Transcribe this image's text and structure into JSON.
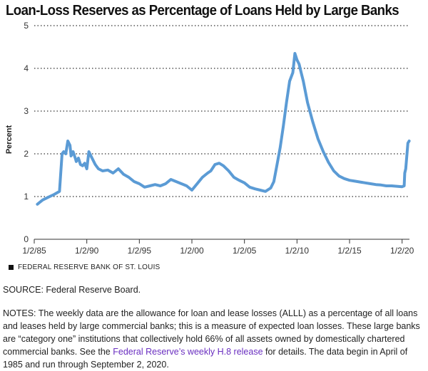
{
  "header": {
    "title": "Loan-Loss Reserves as Percentage of Loans Held by Large Banks"
  },
  "chart_data": {
    "type": "line",
    "title": "Loan-Loss Reserves as Percentage of Loans Held by Large Banks",
    "ylabel": "Percent",
    "xlabel": "",
    "ylim": [
      0,
      5
    ],
    "yticks": [
      0,
      1,
      2,
      3,
      4,
      5
    ],
    "xlim": [
      1985.0,
      2020.7
    ],
    "xticks": [
      {
        "value": 1985,
        "label": "1/2/85"
      },
      {
        "value": 1990,
        "label": "1/2/90"
      },
      {
        "value": 1995,
        "label": "1/2/95"
      },
      {
        "value": 2000,
        "label": "1/2/00"
      },
      {
        "value": 2005,
        "label": "1/2/05"
      },
      {
        "value": 2010,
        "label": "1/2/10"
      },
      {
        "value": 2015,
        "label": "1/2/15"
      },
      {
        "value": 2020,
        "label": "1/2/20"
      }
    ],
    "grid": "horizontal dotted",
    "line_color": "#5b9bd5",
    "series": [
      {
        "x": [
          1985.3,
          1985.45,
          1985.8,
          1986.3,
          1986.9,
          1987.4,
          1987.65,
          1987.8,
          1988.0,
          1988.2,
          1988.4,
          1988.5,
          1988.7,
          1988.9,
          1989.0,
          1989.2,
          1989.4,
          1989.6,
          1989.8,
          1990.0,
          1990.2,
          1990.5,
          1990.8,
          1991.1,
          1991.5,
          1992.0,
          1992.5,
          1993.0,
          1993.5,
          1994.0,
          1994.5,
          1995.0,
          1995.5,
          1996.0,
          1996.5,
          1997.0,
          1997.5,
          1998.0,
          1998.5,
          1999.0,
          1999.5,
          2000.0,
          2000.5,
          2001.0,
          2001.5,
          2001.8,
          2002.2,
          2002.6,
          2003.0,
          2003.5,
          2004.0,
          2004.5,
          2005.0,
          2005.5,
          2006.0,
          2006.5,
          2007.0,
          2007.5,
          2007.8,
          2008.1,
          2008.4,
          2008.7,
          2009.0,
          2009.3,
          2009.6,
          2009.8,
          2010.0,
          2010.2,
          2010.4,
          2010.6,
          2011.0,
          2011.5,
          2012.0,
          2012.5,
          2013.0,
          2013.5,
          2014.0,
          2014.5,
          2015.0,
          2015.5,
          2016.0,
          2016.5,
          2017.0,
          2017.5,
          2018.0,
          2018.5,
          2019.0,
          2019.5,
          2020.0,
          2020.2,
          2020.25,
          2020.35,
          2020.45,
          2020.55,
          2020.67
        ],
        "values": [
          0.82,
          0.85,
          0.92,
          0.98,
          1.05,
          1.12,
          2.0,
          2.05,
          2.0,
          2.3,
          2.2,
          1.95,
          2.05,
          1.9,
          1.82,
          1.9,
          1.75,
          1.72,
          1.78,
          1.65,
          2.05,
          1.9,
          1.75,
          1.65,
          1.6,
          1.62,
          1.55,
          1.65,
          1.52,
          1.45,
          1.35,
          1.3,
          1.22,
          1.25,
          1.28,
          1.25,
          1.3,
          1.4,
          1.35,
          1.3,
          1.25,
          1.15,
          1.3,
          1.45,
          1.55,
          1.6,
          1.75,
          1.78,
          1.72,
          1.6,
          1.45,
          1.38,
          1.32,
          1.22,
          1.18,
          1.15,
          1.12,
          1.2,
          1.35,
          1.75,
          2.15,
          2.65,
          3.2,
          3.7,
          3.9,
          4.35,
          4.2,
          4.1,
          3.9,
          3.7,
          3.2,
          2.75,
          2.35,
          2.05,
          1.8,
          1.6,
          1.48,
          1.42,
          1.38,
          1.36,
          1.34,
          1.32,
          1.3,
          1.28,
          1.27,
          1.25,
          1.25,
          1.24,
          1.23,
          1.25,
          1.55,
          1.65,
          1.95,
          2.25,
          2.3
        ]
      }
    ]
  },
  "footer": {
    "source_mark": "FEDERAL RESERVE BANK OF ST. LOUIS",
    "source_line": "SOURCE: Federal Reserve Board.",
    "notes_pre": "NOTES: The weekly data are the allowance for loan and lease losses (ALLL) as a percentage of all loans and leases held by large commercial banks; this is a measure of expected loan losses. These large banks are “category one” institutions that collectively hold 66% of all assets owned by domestically chartered commercial banks. See the ",
    "notes_link": "Federal Reserve’s weekly H.8 release",
    "notes_post": " for details. The data begin in April of 1985 and run through September 2, 2020.",
    "link_color": "#6a2fc0"
  }
}
